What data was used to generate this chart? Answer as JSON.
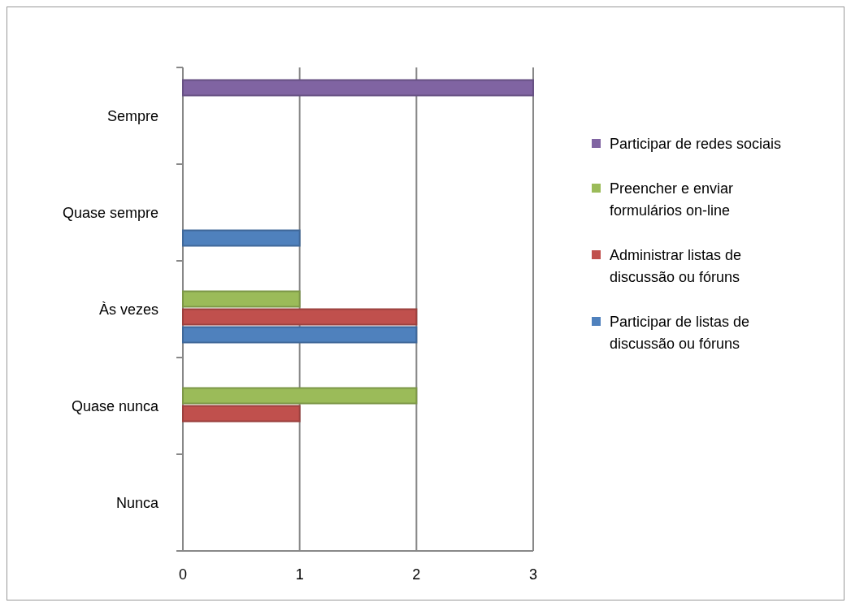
{
  "chart_data": {
    "type": "bar",
    "orientation": "horizontal",
    "categories": [
      "Sempre",
      "Quase sempre",
      "Às vezes",
      "Quase nunca",
      "Nunca"
    ],
    "series": [
      {
        "name": "Participar de redes sociais",
        "color": "#8064a2",
        "values": [
          3,
          0,
          0,
          0,
          0
        ]
      },
      {
        "name": "Preencher e enviar formulários on-line",
        "color": "#9bbb59",
        "values": [
          0,
          0,
          1,
          2,
          0
        ]
      },
      {
        "name": "Administrar listas de discussão ou fóruns",
        "color": "#c0504d",
        "values": [
          0,
          0,
          2,
          1,
          0
        ]
      },
      {
        "name": "Participar de listas de discussão ou fóruns",
        "color": "#4f81bd",
        "values": [
          0,
          1,
          2,
          0,
          0
        ]
      }
    ],
    "xlim": [
      0,
      3
    ],
    "xticks": [
      0,
      1,
      2,
      3
    ],
    "grid": "x",
    "legend": "right"
  }
}
